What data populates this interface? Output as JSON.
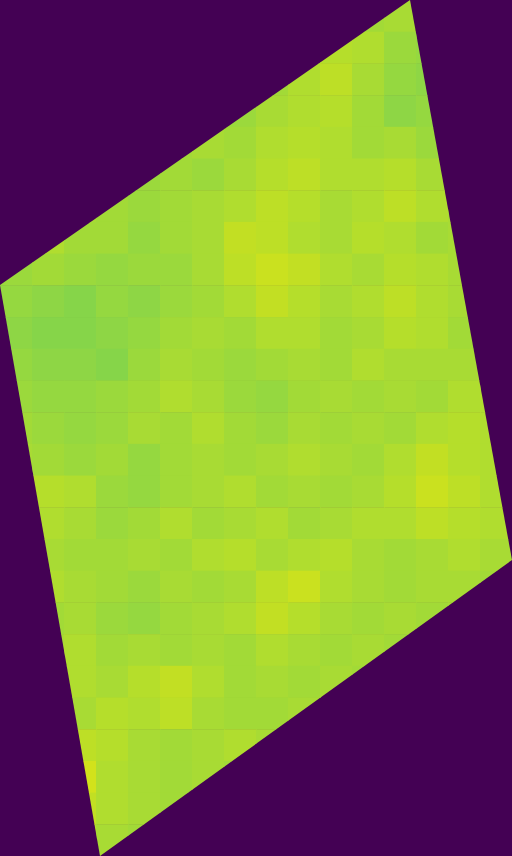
{
  "chart_data": {
    "type": "heatmap",
    "color_range": [
      0,
      1
    ],
    "cells": [
      [
        null,
        null,
        null,
        null,
        null,
        null,
        null,
        null,
        null,
        null,
        null,
        0.86,
        0.87,
        null,
        null,
        null
      ],
      [
        null,
        null,
        null,
        null,
        null,
        null,
        null,
        null,
        null,
        0.87,
        0.89,
        0.88,
        0.85,
        0.84,
        null,
        null
      ],
      [
        null,
        null,
        null,
        null,
        null,
        null,
        null,
        null,
        0.86,
        0.88,
        0.9,
        0.87,
        0.84,
        0.83,
        null,
        null
      ],
      [
        null,
        null,
        null,
        null,
        null,
        null,
        null,
        0.85,
        0.87,
        0.88,
        0.89,
        0.86,
        0.83,
        0.84,
        null,
        null
      ],
      [
        null,
        null,
        null,
        null,
        null,
        0.86,
        0.87,
        0.86,
        0.88,
        0.89,
        0.88,
        0.86,
        0.87,
        0.85,
        null,
        null
      ],
      [
        null,
        null,
        null,
        null,
        0.85,
        0.86,
        0.85,
        0.87,
        0.89,
        0.9,
        0.88,
        0.88,
        0.89,
        0.87,
        null,
        null
      ],
      [
        null,
        null,
        0.87,
        0.86,
        0.85,
        0.86,
        0.87,
        0.88,
        0.9,
        0.89,
        0.87,
        0.88,
        0.9,
        0.88,
        0.87,
        null
      ],
      [
        null,
        0.88,
        0.86,
        0.86,
        0.84,
        0.86,
        0.87,
        0.91,
        0.9,
        0.88,
        0.87,
        0.89,
        0.88,
        0.86,
        0.87,
        null
      ],
      [
        0.85,
        0.86,
        0.85,
        0.84,
        0.85,
        0.85,
        0.87,
        0.9,
        0.92,
        0.91,
        0.88,
        0.87,
        0.89,
        0.88,
        0.87,
        null
      ],
      [
        0.84,
        0.83,
        0.82,
        0.84,
        0.83,
        0.85,
        0.86,
        0.88,
        0.91,
        0.89,
        0.87,
        0.88,
        0.9,
        0.88,
        0.87,
        null
      ],
      [
        0.83,
        0.82,
        0.82,
        0.83,
        0.84,
        0.86,
        0.87,
        0.86,
        0.88,
        0.88,
        0.86,
        0.87,
        0.89,
        0.88,
        0.86,
        null
      ],
      [
        0.84,
        0.83,
        0.83,
        0.82,
        0.85,
        0.87,
        0.86,
        0.85,
        0.86,
        0.87,
        0.86,
        0.88,
        0.87,
        0.87,
        0.87,
        null
      ],
      [
        0.85,
        0.84,
        0.84,
        0.85,
        0.86,
        0.88,
        0.87,
        0.85,
        0.84,
        0.86,
        0.87,
        0.86,
        0.87,
        0.86,
        0.88,
        0.88
      ],
      [
        0.86,
        0.85,
        0.84,
        0.85,
        0.87,
        0.86,
        0.88,
        0.86,
        0.85,
        0.87,
        0.86,
        0.87,
        0.86,
        0.88,
        0.89,
        0.88
      ],
      [
        0.87,
        0.86,
        0.85,
        0.86,
        0.84,
        0.86,
        0.87,
        0.86,
        0.87,
        0.88,
        0.87,
        0.86,
        0.88,
        0.91,
        0.89,
        0.88
      ],
      [
        null,
        0.89,
        0.88,
        0.85,
        0.84,
        0.86,
        0.87,
        0.88,
        0.86,
        0.87,
        0.86,
        0.87,
        0.89,
        0.92,
        0.9,
        0.88
      ],
      [
        null,
        0.88,
        0.87,
        0.85,
        0.86,
        0.88,
        0.86,
        0.87,
        0.88,
        0.86,
        0.87,
        0.88,
        0.88,
        0.9,
        0.89,
        0.88
      ],
      [
        null,
        0.87,
        0.86,
        0.86,
        0.87,
        0.86,
        0.88,
        0.89,
        0.87,
        0.88,
        0.89,
        0.87,
        0.86,
        0.87,
        0.88,
        0.87
      ],
      [
        null,
        0.88,
        0.87,
        0.86,
        0.85,
        0.87,
        0.86,
        0.87,
        0.9,
        0.92,
        0.88,
        0.87,
        0.86,
        0.87,
        0.87,
        0.86
      ],
      [
        null,
        0.86,
        0.87,
        0.85,
        0.84,
        0.86,
        0.87,
        0.88,
        0.91,
        0.89,
        0.87,
        0.86,
        0.87,
        0.86,
        0.87,
        null
      ],
      [
        null,
        0.87,
        0.88,
        0.86,
        0.87,
        0.86,
        0.87,
        0.86,
        0.88,
        0.87,
        0.86,
        0.87,
        0.86,
        null,
        null,
        null
      ],
      [
        null,
        null,
        0.88,
        0.87,
        0.89,
        0.91,
        0.88,
        0.86,
        0.87,
        0.86,
        0.87,
        0.86,
        null,
        null,
        null,
        null
      ],
      [
        null,
        null,
        0.87,
        0.89,
        0.88,
        0.9,
        0.87,
        0.86,
        0.86,
        0.87,
        0.86,
        null,
        null,
        null,
        null,
        null
      ],
      [
        null,
        null,
        0.9,
        0.89,
        0.87,
        0.86,
        0.87,
        0.88,
        0.87,
        null,
        null,
        null,
        null,
        null,
        null,
        null
      ],
      [
        null,
        null,
        0.93,
        0.88,
        0.87,
        0.86,
        0.87,
        0.86,
        null,
        null,
        null,
        null,
        null,
        null,
        null,
        null
      ],
      [
        null,
        null,
        0.91,
        0.88,
        0.87,
        0.86,
        null,
        null,
        null,
        null,
        null,
        null,
        null,
        null,
        null,
        null
      ],
      [
        null,
        null,
        0.89,
        0.87,
        0.86,
        null,
        null,
        null,
        null,
        null,
        null,
        null,
        null,
        null,
        null,
        null
      ]
    ]
  }
}
